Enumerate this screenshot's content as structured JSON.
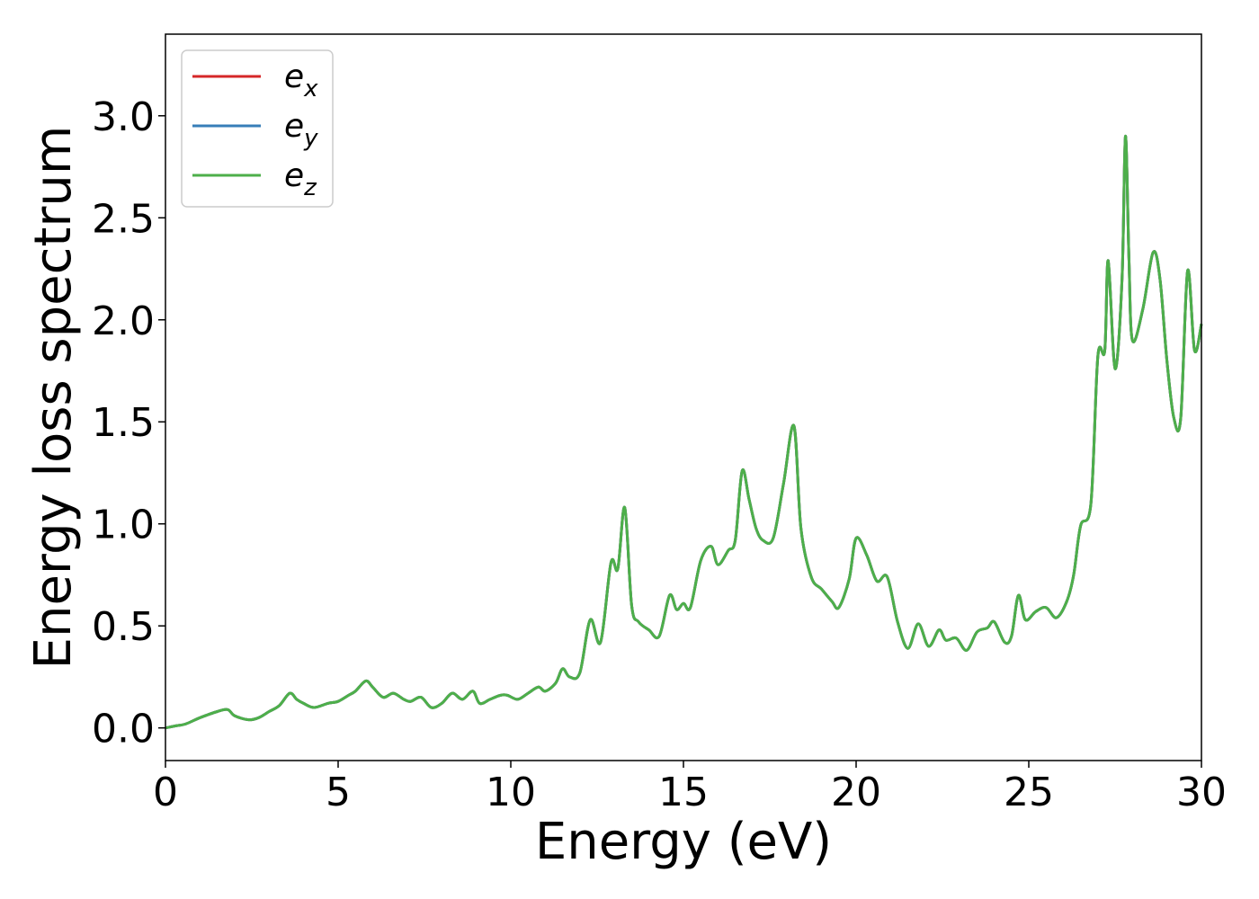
{
  "chart_data": {
    "type": "line",
    "xlabel": "Energy (eV)",
    "ylabel": "Energy loss spectrum",
    "xlim": [
      0,
      30
    ],
    "ylim": [
      -0.16,
      3.4
    ],
    "xticks": [
      0,
      5,
      10,
      15,
      20,
      25,
      30
    ],
    "yticks": [
      0.0,
      0.5,
      1.0,
      1.5,
      2.0,
      2.5,
      3.0
    ],
    "grid": false,
    "legend_position": "top-left",
    "x": [
      0.0,
      0.3,
      0.6,
      1.0,
      1.5,
      1.8,
      2.0,
      2.4,
      2.7,
      3.0,
      3.3,
      3.6,
      3.8,
      4.0,
      4.3,
      4.7,
      5.0,
      5.3,
      5.5,
      5.8,
      6.0,
      6.3,
      6.6,
      6.9,
      7.1,
      7.4,
      7.7,
      8.0,
      8.3,
      8.6,
      8.9,
      9.1,
      9.4,
      9.7,
      9.9,
      10.2,
      10.5,
      10.8,
      11.0,
      11.3,
      11.5,
      11.7,
      12.0,
      12.3,
      12.6,
      12.9,
      13.1,
      13.3,
      13.5,
      13.7,
      14.0,
      14.3,
      14.6,
      14.8,
      15.0,
      15.2,
      15.5,
      15.8,
      16.0,
      16.3,
      16.5,
      16.7,
      16.9,
      17.1,
      17.3,
      17.6,
      17.9,
      18.2,
      18.4,
      18.7,
      19.0,
      19.3,
      19.5,
      19.8,
      20.0,
      20.3,
      20.6,
      20.9,
      21.2,
      21.5,
      21.8,
      22.1,
      22.4,
      22.6,
      22.9,
      23.2,
      23.5,
      23.8,
      24.0,
      24.3,
      24.5,
      24.7,
      24.9,
      25.2,
      25.5,
      25.8,
      26.1,
      26.3,
      26.5,
      26.8,
      27.0,
      27.2,
      27.3,
      27.5,
      27.7,
      27.8,
      27.9,
      28.0,
      28.3,
      28.6,
      28.8,
      29.0,
      29.2,
      29.4,
      29.6,
      29.8,
      30.0
    ],
    "series": [
      {
        "name": "e_x",
        "name_main": "e",
        "name_sub": "x",
        "color": "#d62728",
        "values": [
          0.0,
          0.01,
          0.02,
          0.05,
          0.08,
          0.09,
          0.06,
          0.04,
          0.05,
          0.08,
          0.11,
          0.17,
          0.14,
          0.12,
          0.1,
          0.12,
          0.13,
          0.16,
          0.18,
          0.23,
          0.2,
          0.15,
          0.17,
          0.14,
          0.13,
          0.15,
          0.1,
          0.12,
          0.17,
          0.14,
          0.18,
          0.12,
          0.14,
          0.16,
          0.16,
          0.14,
          0.17,
          0.2,
          0.18,
          0.22,
          0.29,
          0.25,
          0.27,
          0.53,
          0.42,
          0.81,
          0.78,
          1.08,
          0.6,
          0.52,
          0.48,
          0.45,
          0.65,
          0.58,
          0.61,
          0.59,
          0.82,
          0.89,
          0.8,
          0.87,
          0.92,
          1.26,
          1.12,
          0.98,
          0.92,
          0.93,
          1.2,
          1.48,
          0.98,
          0.74,
          0.68,
          0.62,
          0.59,
          0.73,
          0.93,
          0.85,
          0.72,
          0.74,
          0.52,
          0.39,
          0.51,
          0.4,
          0.48,
          0.43,
          0.44,
          0.38,
          0.47,
          0.49,
          0.52,
          0.42,
          0.45,
          0.65,
          0.53,
          0.57,
          0.59,
          0.54,
          0.62,
          0.75,
          0.99,
          1.1,
          1.82,
          1.85,
          2.29,
          1.76,
          2.2,
          2.9,
          2.3,
          1.9,
          2.05,
          2.33,
          2.2,
          1.8,
          1.52,
          1.52,
          2.24,
          1.85,
          1.98
        ]
      },
      {
        "name": "e_y",
        "name_main": "e",
        "name_sub": "y",
        "color": "#377eb8",
        "values": [
          0.0,
          0.01,
          0.02,
          0.05,
          0.08,
          0.09,
          0.06,
          0.04,
          0.05,
          0.08,
          0.11,
          0.17,
          0.14,
          0.12,
          0.1,
          0.12,
          0.13,
          0.16,
          0.18,
          0.23,
          0.2,
          0.15,
          0.17,
          0.14,
          0.13,
          0.15,
          0.1,
          0.12,
          0.17,
          0.14,
          0.18,
          0.12,
          0.14,
          0.16,
          0.16,
          0.14,
          0.17,
          0.2,
          0.18,
          0.22,
          0.29,
          0.25,
          0.27,
          0.53,
          0.42,
          0.81,
          0.78,
          1.08,
          0.6,
          0.52,
          0.48,
          0.45,
          0.65,
          0.58,
          0.61,
          0.59,
          0.82,
          0.89,
          0.8,
          0.87,
          0.92,
          1.26,
          1.12,
          0.98,
          0.92,
          0.93,
          1.2,
          1.48,
          0.98,
          0.74,
          0.68,
          0.62,
          0.59,
          0.73,
          0.93,
          0.85,
          0.72,
          0.74,
          0.52,
          0.39,
          0.51,
          0.4,
          0.48,
          0.43,
          0.44,
          0.38,
          0.47,
          0.49,
          0.52,
          0.42,
          0.45,
          0.65,
          0.53,
          0.57,
          0.59,
          0.54,
          0.62,
          0.75,
          0.99,
          1.1,
          1.82,
          1.85,
          2.29,
          1.76,
          2.2,
          2.9,
          2.3,
          1.9,
          2.05,
          2.33,
          2.2,
          1.8,
          1.52,
          1.52,
          2.24,
          1.85,
          1.98
        ]
      },
      {
        "name": "e_z",
        "name_main": "e",
        "name_sub": "z",
        "color": "#4daf4a",
        "values": [
          0.0,
          0.01,
          0.02,
          0.05,
          0.08,
          0.09,
          0.06,
          0.04,
          0.05,
          0.08,
          0.11,
          0.17,
          0.14,
          0.12,
          0.1,
          0.12,
          0.13,
          0.16,
          0.18,
          0.23,
          0.2,
          0.15,
          0.17,
          0.14,
          0.13,
          0.15,
          0.1,
          0.12,
          0.17,
          0.14,
          0.18,
          0.12,
          0.14,
          0.16,
          0.16,
          0.14,
          0.17,
          0.2,
          0.18,
          0.22,
          0.29,
          0.25,
          0.27,
          0.53,
          0.42,
          0.81,
          0.78,
          1.08,
          0.6,
          0.52,
          0.48,
          0.45,
          0.65,
          0.58,
          0.61,
          0.59,
          0.82,
          0.89,
          0.8,
          0.87,
          0.92,
          1.26,
          1.12,
          0.98,
          0.92,
          0.93,
          1.2,
          1.48,
          0.98,
          0.74,
          0.68,
          0.62,
          0.59,
          0.73,
          0.93,
          0.85,
          0.72,
          0.74,
          0.52,
          0.39,
          0.51,
          0.4,
          0.48,
          0.43,
          0.44,
          0.38,
          0.47,
          0.49,
          0.52,
          0.42,
          0.45,
          0.65,
          0.53,
          0.57,
          0.59,
          0.54,
          0.62,
          0.75,
          0.99,
          1.1,
          1.82,
          1.85,
          2.29,
          1.76,
          2.2,
          2.9,
          2.3,
          1.9,
          2.05,
          2.33,
          2.2,
          1.8,
          1.52,
          1.52,
          2.24,
          1.85,
          1.98
        ]
      }
    ]
  }
}
